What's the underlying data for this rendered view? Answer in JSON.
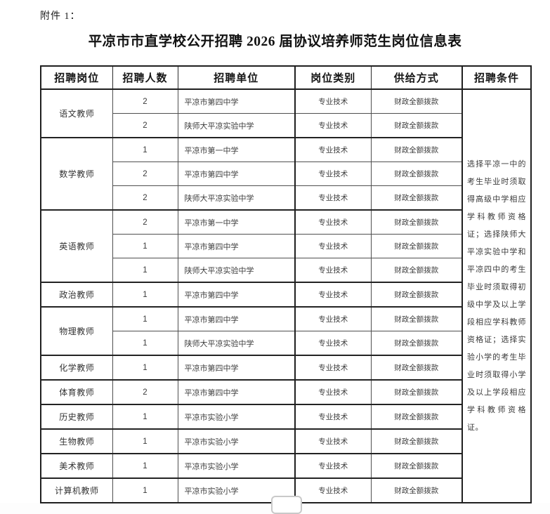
{
  "page": {
    "attachment_label": "附件 1：",
    "title": "平凉市市直学校公开招聘 2026 届协议培养师范生岗位信息表"
  },
  "table": {
    "headers": {
      "position": "招聘岗位",
      "count": "招聘人数",
      "unit": "招聘单位",
      "category": "岗位类别",
      "supply": "供给方式",
      "conditions": "招聘条件"
    },
    "groups": [
      {
        "position": "语文教师",
        "rows": [
          {
            "count": "2",
            "unit": "平凉市第四中学",
            "category": "专业技术",
            "supply": "财政全额拨款"
          },
          {
            "count": "2",
            "unit": "陕师大平凉实验中学",
            "category": "专业技术",
            "supply": "财政全额拨款"
          }
        ]
      },
      {
        "position": "数学教师",
        "rows": [
          {
            "count": "1",
            "unit": "平凉市第一中学",
            "category": "专业技术",
            "supply": "财政全额拨款"
          },
          {
            "count": "2",
            "unit": "平凉市第四中学",
            "category": "专业技术",
            "supply": "财政全额拨款"
          },
          {
            "count": "2",
            "unit": "陕师大平凉实验中学",
            "category": "专业技术",
            "supply": "财政全额拨款"
          }
        ]
      },
      {
        "position": "英语教师",
        "rows": [
          {
            "count": "2",
            "unit": "平凉市第一中学",
            "category": "专业技术",
            "supply": "财政全额拨款"
          },
          {
            "count": "1",
            "unit": "平凉市第四中学",
            "category": "专业技术",
            "supply": "财政全额拨款"
          },
          {
            "count": "1",
            "unit": "陕师大平凉实验中学",
            "category": "专业技术",
            "supply": "财政全额拨款"
          }
        ]
      },
      {
        "position": "政治教师",
        "rows": [
          {
            "count": "1",
            "unit": "平凉市第四中学",
            "category": "专业技术",
            "supply": "财政全额拨款"
          }
        ]
      },
      {
        "position": "物理教师",
        "rows": [
          {
            "count": "1",
            "unit": "平凉市第四中学",
            "category": "专业技术",
            "supply": "财政全额拨款"
          },
          {
            "count": "1",
            "unit": "陕师大平凉实验中学",
            "category": "专业技术",
            "supply": "财政全额拨款"
          }
        ]
      },
      {
        "position": "化学教师",
        "rows": [
          {
            "count": "1",
            "unit": "平凉市第四中学",
            "category": "专业技术",
            "supply": "财政全额拨款"
          }
        ]
      },
      {
        "position": "体育教师",
        "rows": [
          {
            "count": "2",
            "unit": "平凉市第四中学",
            "category": "专业技术",
            "supply": "财政全额拨款"
          }
        ]
      },
      {
        "position": "历史教师",
        "rows": [
          {
            "count": "1",
            "unit": "平凉市实验小学",
            "category": "专业技术",
            "supply": "财政全额拨款"
          }
        ]
      },
      {
        "position": "生物教师",
        "rows": [
          {
            "count": "1",
            "unit": "平凉市实验小学",
            "category": "专业技术",
            "supply": "财政全额拨款"
          }
        ]
      },
      {
        "position": "美术教师",
        "rows": [
          {
            "count": "1",
            "unit": "平凉市实验小学",
            "category": "专业技术",
            "supply": "财政全额拨款"
          }
        ]
      },
      {
        "position": "计算机教师",
        "rows": [
          {
            "count": "1",
            "unit": "平凉市实验小学",
            "category": "专业技术",
            "supply": "财政全额拨款"
          }
        ]
      }
    ],
    "conditions": "选择平凉一中的考生毕业时须取得高级中学相应学科教师资格证；选择陕师大平凉实验中学和平凉四中的考生毕业时须取得初级中学及以上学段相应学科教师资格证；选择实验小学的考生毕业时须取得小学及以上学段相应学科教师资格证。"
  }
}
